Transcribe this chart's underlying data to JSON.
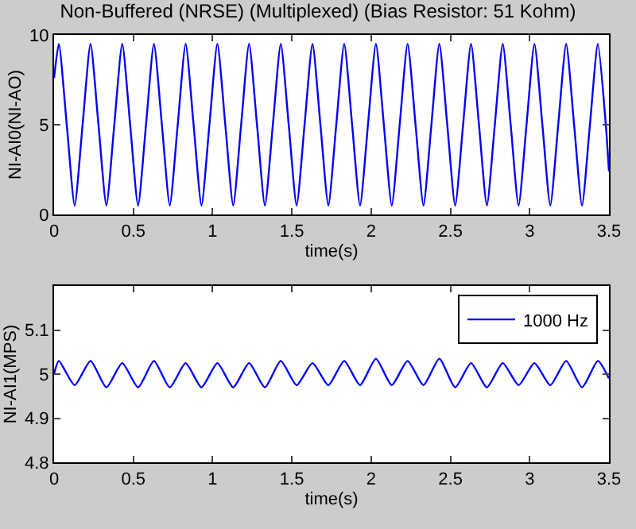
{
  "chart_data": [
    {
      "type": "line",
      "title": "Non-Buffered (NRSE) (Multiplexed) (Bias Resistor: 51 Kohm)",
      "xlabel": "time(s)",
      "ylabel": "NI-AI0(NI-AO)",
      "xlim": [
        0,
        3.5
      ],
      "xticks": [
        0,
        0.5,
        1,
        1.5,
        2,
        2.5,
        3,
        3.5
      ],
      "ylim": [
        0,
        10
      ],
      "yticks": [
        0,
        5,
        10
      ],
      "series": [
        {
          "color": "#0000ff",
          "x": [
            0,
            0.03,
            0.08,
            0.13,
            0.18,
            0.23,
            0.28,
            0.33,
            0.38,
            0.43,
            0.48,
            0.53,
            0.58,
            0.63,
            0.68,
            0.73,
            0.78,
            0.83,
            0.88,
            0.93,
            0.98,
            1.03,
            1.08,
            1.13,
            1.18,
            1.23,
            1.28,
            1.33,
            1.38,
            1.43,
            1.48,
            1.53,
            1.58,
            1.63,
            1.68,
            1.73,
            1.78,
            1.83,
            1.88,
            1.93,
            1.98,
            2.03,
            2.08,
            2.13,
            2.18,
            2.23,
            2.28,
            2.33,
            2.38,
            2.43,
            2.48,
            2.53,
            2.58,
            2.63,
            2.68,
            2.73,
            2.78,
            2.83,
            2.88,
            2.93,
            2.98,
            3.03,
            3.08,
            3.13,
            3.18,
            3.23,
            3.28,
            3.33,
            3.38,
            3.43,
            3.48,
            3.5
          ],
          "values": [
            7.6,
            9.5,
            5,
            0.5,
            5,
            9.5,
            5,
            0.5,
            5,
            9.5,
            5,
            0.5,
            5,
            9.5,
            5,
            0.5,
            5,
            9.5,
            5,
            0.5,
            5,
            9.5,
            5,
            0.5,
            5,
            9.5,
            5,
            0.5,
            5,
            9.5,
            5,
            0.5,
            5,
            9.5,
            5,
            0.5,
            5,
            9.5,
            5,
            0.5,
            5,
            9.5,
            5,
            0.5,
            5,
            9.5,
            5,
            0.5,
            5,
            9.5,
            5,
            0.5,
            5,
            9.5,
            5,
            0.5,
            5,
            9.5,
            5,
            0.5,
            5,
            9.5,
            5,
            0.5,
            5,
            9.5,
            5,
            0.5,
            5,
            9.5,
            5,
            2.4
          ]
        }
      ]
    },
    {
      "type": "line",
      "xlabel": "time(s)",
      "ylabel": "NI-AI1(MPS)",
      "xlim": [
        0,
        3.5
      ],
      "xticks": [
        0,
        0.5,
        1,
        1.5,
        2,
        2.5,
        3,
        3.5
      ],
      "ylim": [
        4.8,
        5.2
      ],
      "yticks": [
        4.8,
        4.9,
        5,
        5.1
      ],
      "legend": "top right",
      "series": [
        {
          "name": "1000 Hz",
          "color": "#0000ff",
          "x": [
            0,
            0.03,
            0.13,
            0.23,
            0.33,
            0.43,
            0.53,
            0.63,
            0.73,
            0.83,
            0.93,
            1.03,
            1.13,
            1.23,
            1.33,
            1.43,
            1.53,
            1.63,
            1.73,
            1.83,
            1.93,
            2.03,
            2.13,
            2.23,
            2.33,
            2.43,
            2.53,
            2.63,
            2.73,
            2.83,
            2.93,
            3.03,
            3.13,
            3.23,
            3.33,
            3.43,
            3.5
          ],
          "values": [
            5.0,
            5.03,
            4.975,
            5.03,
            4.97,
            5.025,
            4.97,
            5.03,
            4.97,
            5.025,
            4.97,
            5.025,
            4.97,
            5.025,
            4.97,
            5.03,
            4.975,
            5.025,
            4.975,
            5.03,
            4.975,
            5.035,
            4.975,
            5.03,
            4.975,
            5.035,
            4.97,
            5.025,
            4.97,
            5.025,
            4.975,
            5.025,
            4.975,
            5.03,
            4.97,
            5.03,
            4.99
          ]
        }
      ]
    }
  ]
}
